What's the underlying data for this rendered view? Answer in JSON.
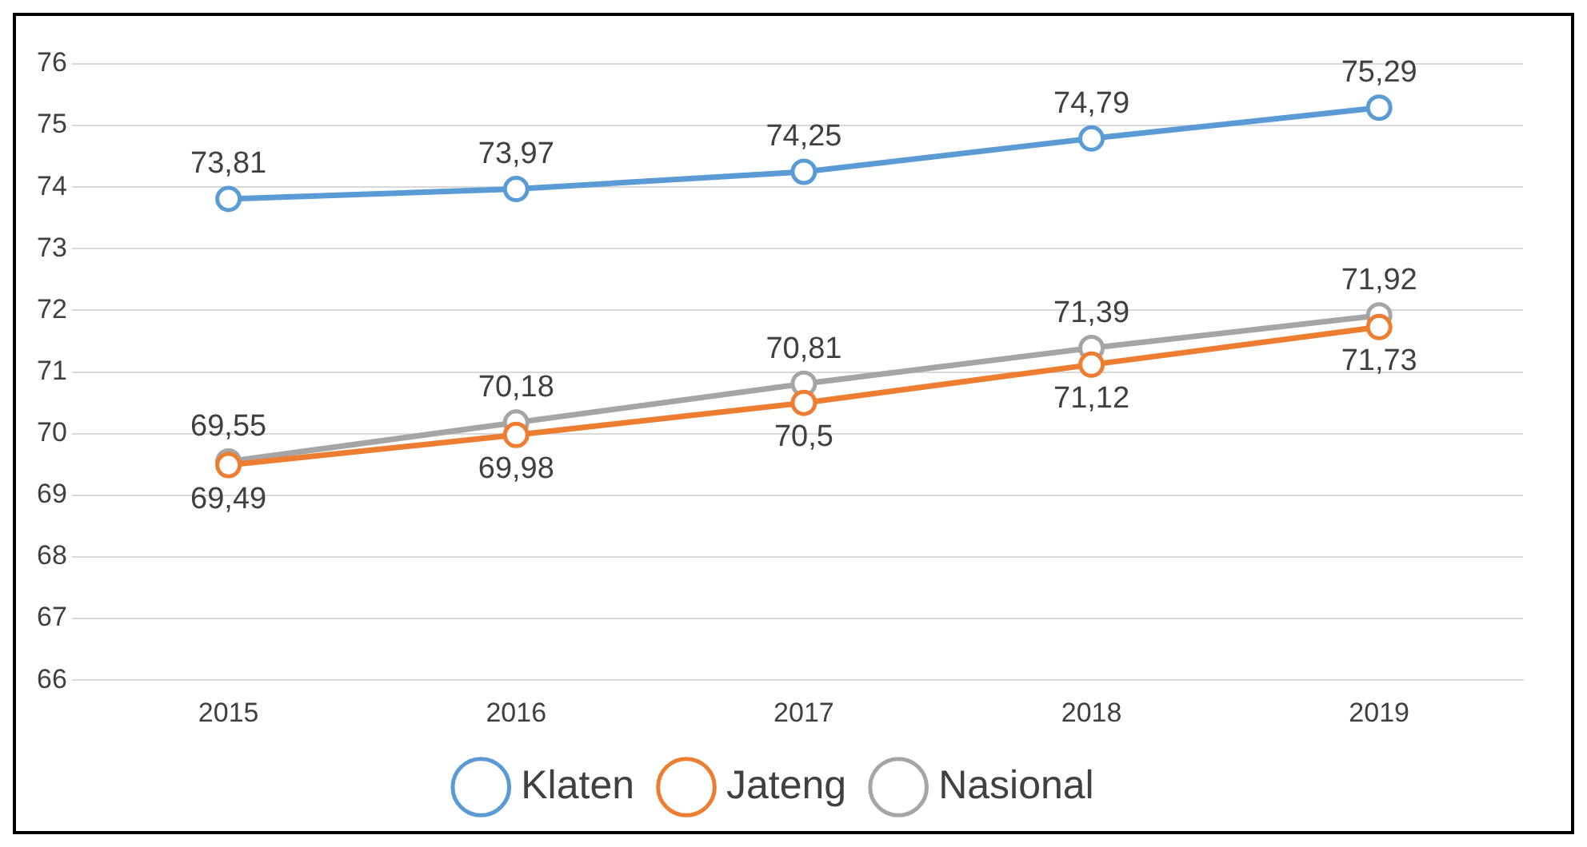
{
  "chart_data": {
    "type": "line",
    "categories": [
      "2015",
      "2016",
      "2017",
      "2018",
      "2019"
    ],
    "series": [
      {
        "name": "Klaten",
        "color": "#5b9bd5",
        "values": [
          73.81,
          73.97,
          74.25,
          74.79,
          75.29
        ],
        "value_labels": [
          "73,81",
          "73,97",
          "74,25",
          "74,79",
          "75,29"
        ]
      },
      {
        "name": "Jateng",
        "color": "#ed7d31",
        "values": [
          69.49,
          69.98,
          70.5,
          71.12,
          71.73
        ],
        "value_labels": [
          "69,49",
          "69,98",
          "70,5",
          "71,12",
          "71,73"
        ]
      },
      {
        "name": "Nasional",
        "color": "#a5a5a5",
        "values": [
          69.55,
          70.18,
          70.81,
          71.39,
          71.92
        ],
        "value_labels": [
          "69,55",
          "70,18",
          "70,81",
          "71,39",
          "71,92"
        ]
      }
    ],
    "ylim": [
      66,
      76
    ],
    "yticks": [
      66,
      67,
      68,
      69,
      70,
      71,
      72,
      73,
      74,
      75,
      76
    ],
    "grid": "y",
    "legend": "bottom",
    "marker": "circle",
    "line_style": "solid"
  }
}
